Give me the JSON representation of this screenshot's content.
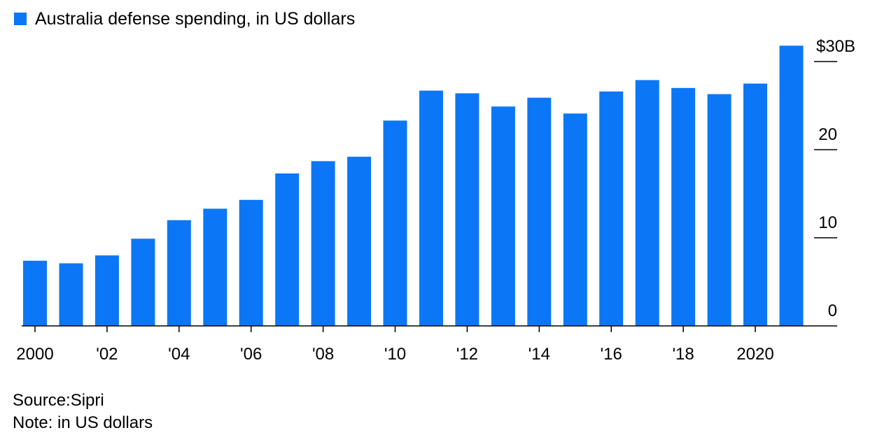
{
  "legend": {
    "label": "Australia defense spending, in US dollars",
    "color": "#0b77f7"
  },
  "footer": {
    "source": "Source:Sipri",
    "note": "Note: in US dollars"
  },
  "chart_data": {
    "type": "bar",
    "title": "",
    "xlabel": "",
    "ylabel": "",
    "categories": [
      "2000",
      "2001",
      "2002",
      "2003",
      "2004",
      "2005",
      "2006",
      "2007",
      "2008",
      "2009",
      "2010",
      "2011",
      "2012",
      "2013",
      "2014",
      "2015",
      "2016",
      "2017",
      "2018",
      "2019",
      "2020",
      "2021"
    ],
    "series": [
      {
        "name": "Australia defense spending, in US dollars",
        "values": [
          7.4,
          7.1,
          8.0,
          9.9,
          12.0,
          13.3,
          14.3,
          17.3,
          18.7,
          19.2,
          23.3,
          26.7,
          26.4,
          24.9,
          25.9,
          24.1,
          26.6,
          27.9,
          27.0,
          26.3,
          27.5,
          31.8
        ]
      }
    ],
    "ylim": [
      0,
      30
    ],
    "yticks": [
      0,
      10,
      20,
      30
    ],
    "ytick_labels": [
      "0",
      "10",
      "20",
      "$30B"
    ],
    "xtick_labels": [
      "2000",
      "'02",
      "'04",
      "'06",
      "'08",
      "'10",
      "'12",
      "'14",
      "'16",
      "'18",
      "2020"
    ],
    "xtick_every": 2,
    "y_axis_side": "right",
    "grid": false,
    "legend_position": "top-left",
    "bar_color": "#0b77f7"
  }
}
